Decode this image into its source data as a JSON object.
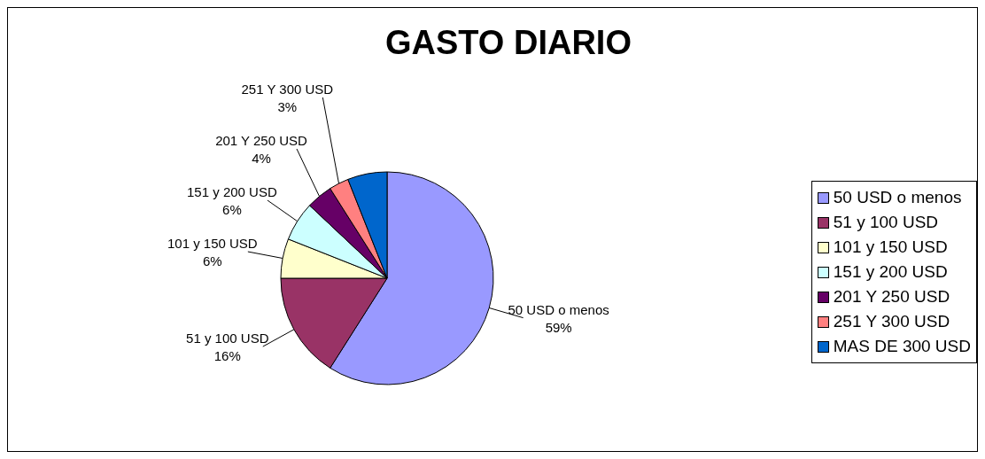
{
  "chart_data": {
    "type": "pie",
    "title": "GASTO DIARIO",
    "categories": [
      "50 USD o menos",
      "51 y 100 USD",
      "101 y 150 USD",
      "151 y 200 USD",
      "201 Y 250 USD",
      "251 Y 300 USD",
      "MAS DE 300 USD"
    ],
    "values": [
      59,
      16,
      6,
      6,
      4,
      3,
      6
    ],
    "value_labels": [
      "59%",
      "16%",
      "6%",
      "6%",
      "4%",
      "3%",
      null
    ],
    "colors": [
      "#9999ff",
      "#993366",
      "#ffffcc",
      "#ccffff",
      "#660066",
      "#ff8080",
      "#0066cc"
    ],
    "legend": "right"
  }
}
